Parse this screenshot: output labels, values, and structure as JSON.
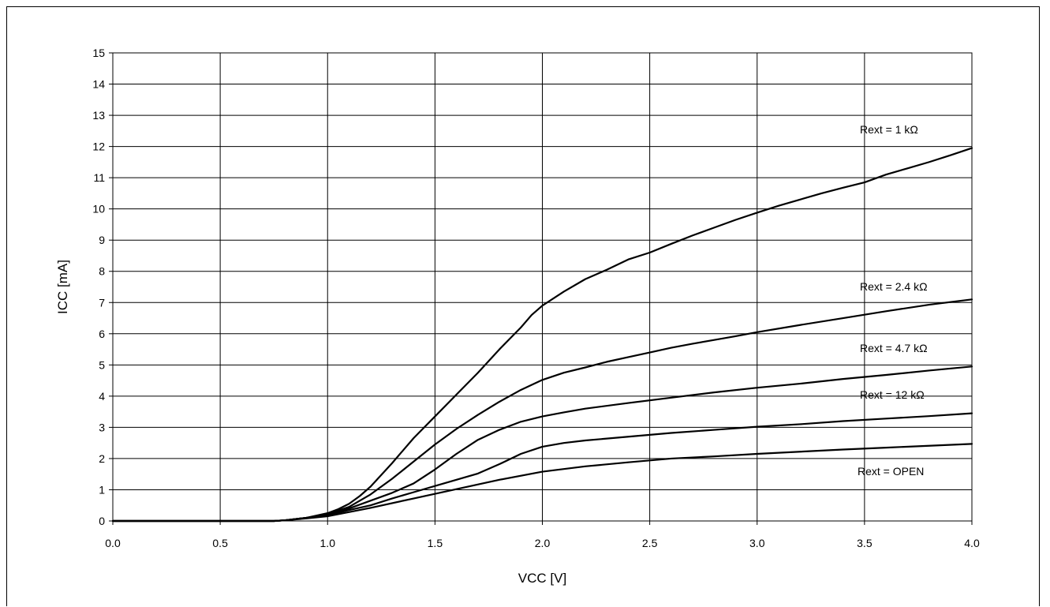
{
  "chart_data": {
    "type": "line",
    "xlabel": "VCC [V]",
    "ylabel": "ICC [mA]",
    "xlim": [
      0,
      4.0
    ],
    "ylim": [
      0,
      15
    ],
    "x_ticks": [
      "0.0",
      "0.5",
      "1.0",
      "1.5",
      "2.0",
      "2.5",
      "3.0",
      "3.5",
      "4.0"
    ],
    "y_ticks": [
      "0",
      "1",
      "2",
      "3",
      "4",
      "5",
      "6",
      "7",
      "8",
      "9",
      "10",
      "11",
      "12",
      "13",
      "14",
      "15"
    ],
    "grid": true,
    "legend": "none",
    "line_color": "#000000",
    "series": [
      {
        "name": "Rext = 1 kΩ",
        "points": [
          [
            0,
            0
          ],
          [
            0.75,
            0
          ],
          [
            0.8,
            0.02
          ],
          [
            0.9,
            0.1
          ],
          [
            1.0,
            0.25
          ],
          [
            1.05,
            0.38
          ],
          [
            1.1,
            0.55
          ],
          [
            1.15,
            0.8
          ],
          [
            1.2,
            1.1
          ],
          [
            1.3,
            1.85
          ],
          [
            1.4,
            2.65
          ],
          [
            1.5,
            3.35
          ],
          [
            1.6,
            4.05
          ],
          [
            1.7,
            4.75
          ],
          [
            1.8,
            5.5
          ],
          [
            1.9,
            6.2
          ],
          [
            1.95,
            6.6
          ],
          [
            2.0,
            6.9
          ],
          [
            2.1,
            7.35
          ],
          [
            2.2,
            7.75
          ],
          [
            2.3,
            8.05
          ],
          [
            2.4,
            8.38
          ],
          [
            2.5,
            8.6
          ],
          [
            2.6,
            8.88
          ],
          [
            2.7,
            9.15
          ],
          [
            2.8,
            9.4
          ],
          [
            2.9,
            9.65
          ],
          [
            3.0,
            9.88
          ],
          [
            3.1,
            10.1
          ],
          [
            3.2,
            10.3
          ],
          [
            3.3,
            10.5
          ],
          [
            3.4,
            10.68
          ],
          [
            3.5,
            10.85
          ],
          [
            3.6,
            11.1
          ],
          [
            3.7,
            11.3
          ],
          [
            3.8,
            11.5
          ],
          [
            3.9,
            11.72
          ],
          [
            4.0,
            11.95
          ]
        ]
      },
      {
        "name": "Rext = 2.4 kΩ",
        "points": [
          [
            0,
            0
          ],
          [
            0.75,
            0
          ],
          [
            0.8,
            0.02
          ],
          [
            0.9,
            0.1
          ],
          [
            1.0,
            0.22
          ],
          [
            1.1,
            0.45
          ],
          [
            1.2,
            0.85
          ],
          [
            1.3,
            1.35
          ],
          [
            1.4,
            1.9
          ],
          [
            1.5,
            2.45
          ],
          [
            1.6,
            2.95
          ],
          [
            1.7,
            3.4
          ],
          [
            1.8,
            3.82
          ],
          [
            1.9,
            4.2
          ],
          [
            2.0,
            4.52
          ],
          [
            2.1,
            4.75
          ],
          [
            2.2,
            4.92
          ],
          [
            2.3,
            5.1
          ],
          [
            2.4,
            5.25
          ],
          [
            2.5,
            5.4
          ],
          [
            2.6,
            5.55
          ],
          [
            2.7,
            5.68
          ],
          [
            2.8,
            5.8
          ],
          [
            2.9,
            5.92
          ],
          [
            3.0,
            6.05
          ],
          [
            3.2,
            6.28
          ],
          [
            3.4,
            6.5
          ],
          [
            3.6,
            6.72
          ],
          [
            3.8,
            6.93
          ],
          [
            4.0,
            7.1
          ]
        ]
      },
      {
        "name": "Rext = 4.7 kΩ",
        "points": [
          [
            0,
            0
          ],
          [
            0.75,
            0
          ],
          [
            0.8,
            0.02
          ],
          [
            0.9,
            0.1
          ],
          [
            1.0,
            0.2
          ],
          [
            1.1,
            0.4
          ],
          [
            1.2,
            0.65
          ],
          [
            1.3,
            0.9
          ],
          [
            1.4,
            1.2
          ],
          [
            1.5,
            1.65
          ],
          [
            1.6,
            2.15
          ],
          [
            1.7,
            2.6
          ],
          [
            1.8,
            2.92
          ],
          [
            1.9,
            3.18
          ],
          [
            2.0,
            3.35
          ],
          [
            2.1,
            3.48
          ],
          [
            2.2,
            3.6
          ],
          [
            2.4,
            3.78
          ],
          [
            2.6,
            3.95
          ],
          [
            2.8,
            4.12
          ],
          [
            3.0,
            4.27
          ],
          [
            3.2,
            4.4
          ],
          [
            3.4,
            4.55
          ],
          [
            3.6,
            4.68
          ],
          [
            3.8,
            4.82
          ],
          [
            4.0,
            4.95
          ]
        ]
      },
      {
        "name": "Rext = 12 kΩ",
        "points": [
          [
            0,
            0
          ],
          [
            0.75,
            0
          ],
          [
            0.8,
            0.02
          ],
          [
            0.9,
            0.1
          ],
          [
            1.0,
            0.18
          ],
          [
            1.1,
            0.35
          ],
          [
            1.2,
            0.5
          ],
          [
            1.3,
            0.72
          ],
          [
            1.4,
            0.92
          ],
          [
            1.5,
            1.12
          ],
          [
            1.6,
            1.32
          ],
          [
            1.7,
            1.52
          ],
          [
            1.8,
            1.82
          ],
          [
            1.9,
            2.15
          ],
          [
            2.0,
            2.38
          ],
          [
            2.1,
            2.5
          ],
          [
            2.2,
            2.58
          ],
          [
            2.4,
            2.7
          ],
          [
            2.6,
            2.82
          ],
          [
            2.8,
            2.92
          ],
          [
            3.0,
            3.02
          ],
          [
            3.2,
            3.1
          ],
          [
            3.4,
            3.2
          ],
          [
            3.6,
            3.28
          ],
          [
            3.8,
            3.36
          ],
          [
            4.0,
            3.45
          ]
        ]
      },
      {
        "name": "Rext = OPEN",
        "points": [
          [
            0,
            0
          ],
          [
            0.75,
            0
          ],
          [
            0.8,
            0.02
          ],
          [
            0.9,
            0.08
          ],
          [
            1.0,
            0.15
          ],
          [
            1.2,
            0.42
          ],
          [
            1.4,
            0.72
          ],
          [
            1.6,
            1.02
          ],
          [
            1.8,
            1.32
          ],
          [
            2.0,
            1.58
          ],
          [
            2.2,
            1.75
          ],
          [
            2.4,
            1.88
          ],
          [
            2.6,
            2.0
          ],
          [
            2.8,
            2.07
          ],
          [
            3.0,
            2.15
          ],
          [
            3.2,
            2.22
          ],
          [
            3.4,
            2.29
          ],
          [
            3.6,
            2.35
          ],
          [
            3.8,
            2.41
          ],
          [
            4.0,
            2.47
          ]
        ]
      }
    ]
  }
}
